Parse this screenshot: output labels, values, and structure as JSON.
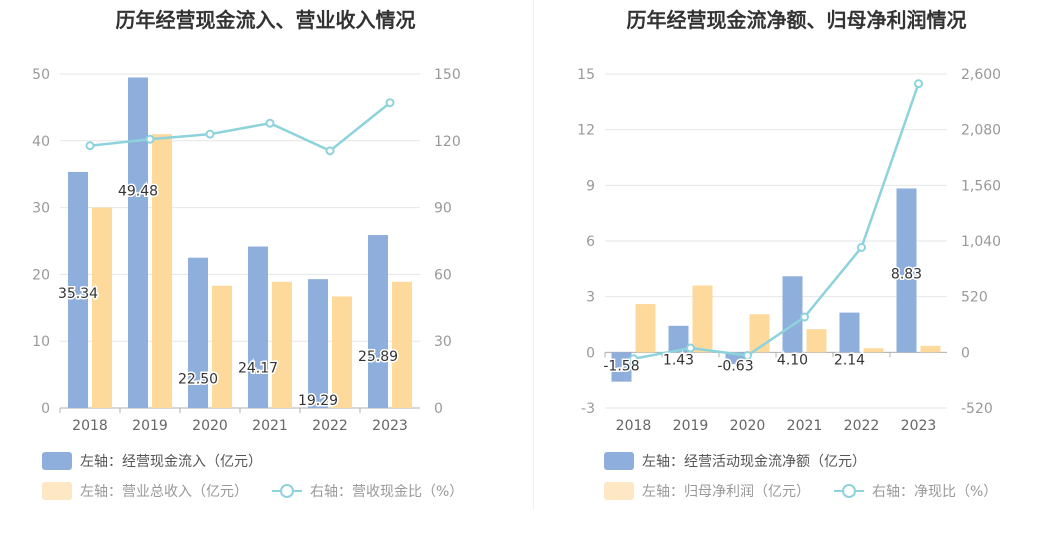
{
  "colors": {
    "bar_primary": "#8eaedc",
    "bar_secondary": "#fdd99c",
    "line": "#8dd3dc",
    "grid": "#e6e6e6",
    "axis_text": "#999999",
    "title": "#333333"
  },
  "charts": {
    "left": {
      "title": "历年经营现金流入、营业收入情况",
      "legend": {
        "s1": "左轴：经营现金流入（亿元）",
        "s2": "左轴：营业总收入（亿元）",
        "s3": "右轴：营收现金比（%）"
      }
    },
    "right": {
      "title": "历年经营现金流净额、归母净利润情况",
      "legend": {
        "s1": "左轴：经营活动现金流净额（亿元）",
        "s2": "左轴：归母净利润（亿元）",
        "s3": "右轴：净现比（%）"
      }
    }
  },
  "chart_data": [
    {
      "type": "bar",
      "title": "历年经营现金流入、营业收入情况",
      "categories": [
        "2018",
        "2019",
        "2020",
        "2021",
        "2022",
        "2023"
      ],
      "ylim_left": [
        0,
        50
      ],
      "ylim_right": [
        0,
        150
      ],
      "yticks_left": [
        "0",
        "10",
        "20",
        "30",
        "40",
        "50"
      ],
      "yticks_right": [
        "0",
        "30",
        "60",
        "90",
        "120",
        "150"
      ],
      "grid": true,
      "legend_position": "bottom",
      "series": [
        {
          "name": "左轴：经营现金流入（亿元）",
          "axis": "left",
          "kind": "bar",
          "values": [
            35.34,
            49.48,
            22.5,
            24.17,
            19.29,
            25.89
          ],
          "labels": [
            "35.34",
            "49.48",
            "22.50",
            "24.17",
            "19.29",
            "25.89"
          ]
        },
        {
          "name": "左轴：营业总收入（亿元）",
          "axis": "left",
          "kind": "bar",
          "values": [
            30.0,
            41.0,
            18.3,
            18.9,
            16.7,
            18.9
          ]
        },
        {
          "name": "右轴：营收现金比（%）",
          "axis": "right",
          "kind": "line",
          "values": [
            117.8,
            120.7,
            123.0,
            127.9,
            115.5,
            137.1
          ]
        }
      ]
    },
    {
      "type": "bar",
      "title": "历年经营现金流净额、归母净利润情况",
      "categories": [
        "2018",
        "2019",
        "2020",
        "2021",
        "2022",
        "2023"
      ],
      "ylim_left": [
        -3,
        15
      ],
      "ylim_right": [
        -520,
        2600
      ],
      "yticks_left": [
        "-3",
        "0",
        "3",
        "6",
        "9",
        "12",
        "15"
      ],
      "yticks_right": [
        "-520",
        "0",
        "520",
        "1,040",
        "1,560",
        "2,080",
        "2,600"
      ],
      "grid": true,
      "legend_position": "bottom",
      "series": [
        {
          "name": "左轴：经营活动现金流净额（亿元）",
          "axis": "left",
          "kind": "bar",
          "values": [
            -1.58,
            1.43,
            -0.63,
            4.1,
            2.14,
            8.83
          ],
          "labels": [
            "-1.58",
            "1.43",
            "-0.63",
            "4.10",
            "2.14",
            "8.83"
          ]
        },
        {
          "name": "左轴：归母净利润（亿元）",
          "axis": "left",
          "kind": "bar",
          "values": [
            2.6,
            3.6,
            2.05,
            1.25,
            0.22,
            0.35
          ]
        },
        {
          "name": "右轴：净现比（%）",
          "axis": "right",
          "kind": "line",
          "values": [
            -60,
            40,
            -30,
            330,
            980,
            2510
          ]
        }
      ]
    }
  ]
}
